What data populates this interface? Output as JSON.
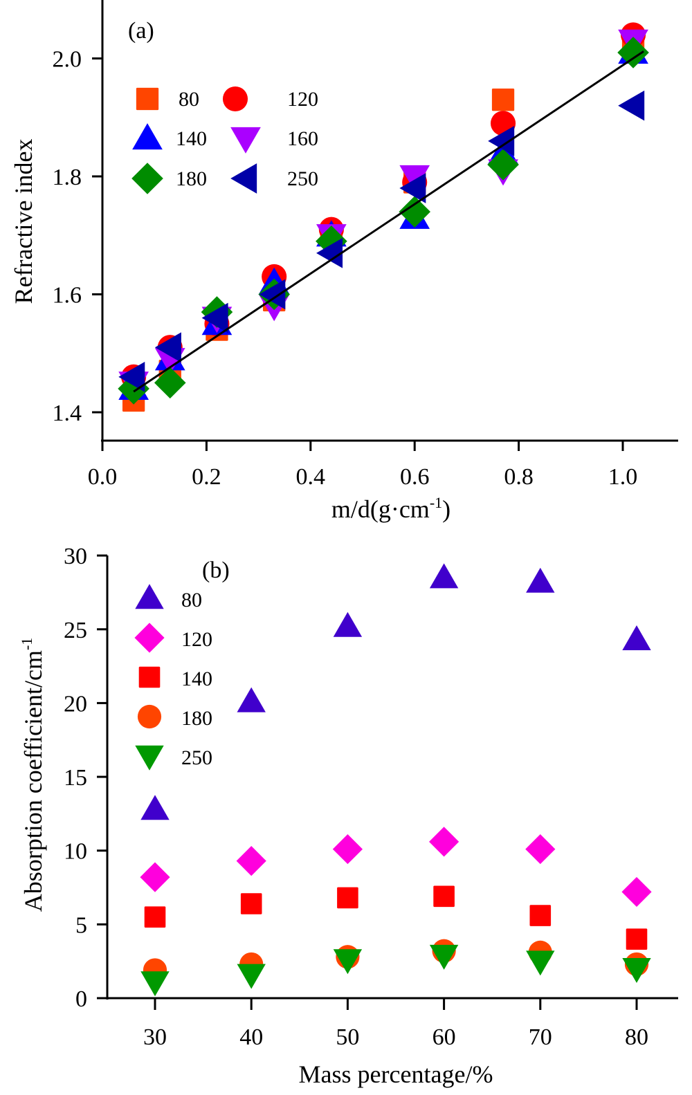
{
  "chart_data": [
    {
      "id": "a",
      "type": "scatter",
      "panel_label": "(a)",
      "xlabel": "m/d(g·cm",
      "xlabel_sup": "-1",
      "xlabel_tail": ")",
      "ylabel": "Refractive index",
      "xlim": [
        0.0,
        1.1
      ],
      "ylim": [
        1.35,
        2.1
      ],
      "xticks": [
        "0.0",
        "0.2",
        "0.4",
        "0.6",
        "0.8",
        "1.0"
      ],
      "xtick_values": [
        0.0,
        0.2,
        0.4,
        0.6,
        0.8,
        1.0
      ],
      "yticks": [
        "1.4",
        "1.6",
        "1.8",
        "2.0"
      ],
      "ytick_values": [
        1.4,
        1.6,
        1.8,
        2.0
      ],
      "grid": false,
      "legend_position": "top-left",
      "x": [
        0.06,
        0.13,
        0.22,
        0.33,
        0.44,
        0.6,
        0.77,
        1.02
      ],
      "series": [
        {
          "name": "80",
          "marker": "square",
          "color": "#ff4500",
          "values": [
            1.42,
            1.47,
            1.54,
            1.59,
            1.7,
            1.79,
            1.93,
            2.03
          ]
        },
        {
          "name": "120",
          "marker": "circle",
          "color": "#ff0000",
          "values": [
            1.46,
            1.51,
            1.55,
            1.63,
            1.71,
            1.79,
            1.89,
            2.04
          ]
        },
        {
          "name": "140",
          "marker": "triangle-up",
          "color": "#0000ff",
          "values": [
            1.44,
            1.49,
            1.55,
            1.62,
            1.7,
            1.73,
            1.84,
            2.01
          ]
        },
        {
          "name": "160",
          "marker": "triangle-down",
          "color": "#aa00ff",
          "values": [
            1.45,
            1.49,
            1.56,
            1.58,
            1.7,
            1.8,
            1.81,
            2.03
          ]
        },
        {
          "name": "180",
          "marker": "diamond",
          "color": "#008c00",
          "values": [
            1.44,
            1.45,
            1.57,
            1.6,
            1.69,
            1.74,
            1.82,
            2.01
          ]
        },
        {
          "name": "250",
          "marker": "triangle-left",
          "color": "#0000a8",
          "values": [
            1.46,
            1.51,
            1.56,
            1.6,
            1.67,
            1.78,
            1.86,
            1.92
          ]
        }
      ],
      "fit_line": {
        "x": [
          0.06,
          1.04
        ],
        "y": [
          1.435,
          2.012
        ]
      }
    },
    {
      "id": "b",
      "type": "scatter",
      "panel_label": "(b)",
      "xlabel": "Mass percentage/%",
      "ylabel": "Absorption coefficient/cm",
      "ylabel_sup": "-1",
      "xlim": [
        25.5,
        84.5
      ],
      "ylim": [
        0,
        30
      ],
      "xticks": [
        "30",
        "40",
        "50",
        "60",
        "70",
        "80"
      ],
      "xtick_values": [
        30,
        40,
        50,
        60,
        70,
        80
      ],
      "yticks": [
        "0",
        "5",
        "10",
        "15",
        "20",
        "25",
        "30"
      ],
      "ytick_values": [
        0,
        5,
        10,
        15,
        20,
        25,
        30
      ],
      "grid": false,
      "legend_position": "top-left",
      "x": [
        30,
        40,
        50,
        60,
        70,
        80
      ],
      "series": [
        {
          "name": "80",
          "marker": "triangle-up",
          "color": "#4000cc",
          "values": [
            12.8,
            20.1,
            25.2,
            28.5,
            28.2,
            24.3
          ]
        },
        {
          "name": "120",
          "marker": "diamond",
          "color": "#ff00dd",
          "values": [
            8.2,
            9.3,
            10.1,
            10.6,
            10.1,
            7.2
          ]
        },
        {
          "name": "140",
          "marker": "square",
          "color": "#ff0000",
          "values": [
            5.5,
            6.4,
            6.8,
            6.9,
            5.6,
            4.0
          ]
        },
        {
          "name": "180",
          "marker": "circle",
          "color": "#ff4500",
          "values": [
            1.9,
            2.3,
            2.8,
            3.2,
            3.1,
            2.3
          ]
        },
        {
          "name": "250",
          "marker": "triangle-down",
          "color": "#009900",
          "values": [
            1.1,
            1.6,
            2.6,
            2.9,
            2.5,
            2.0
          ]
        }
      ]
    }
  ]
}
